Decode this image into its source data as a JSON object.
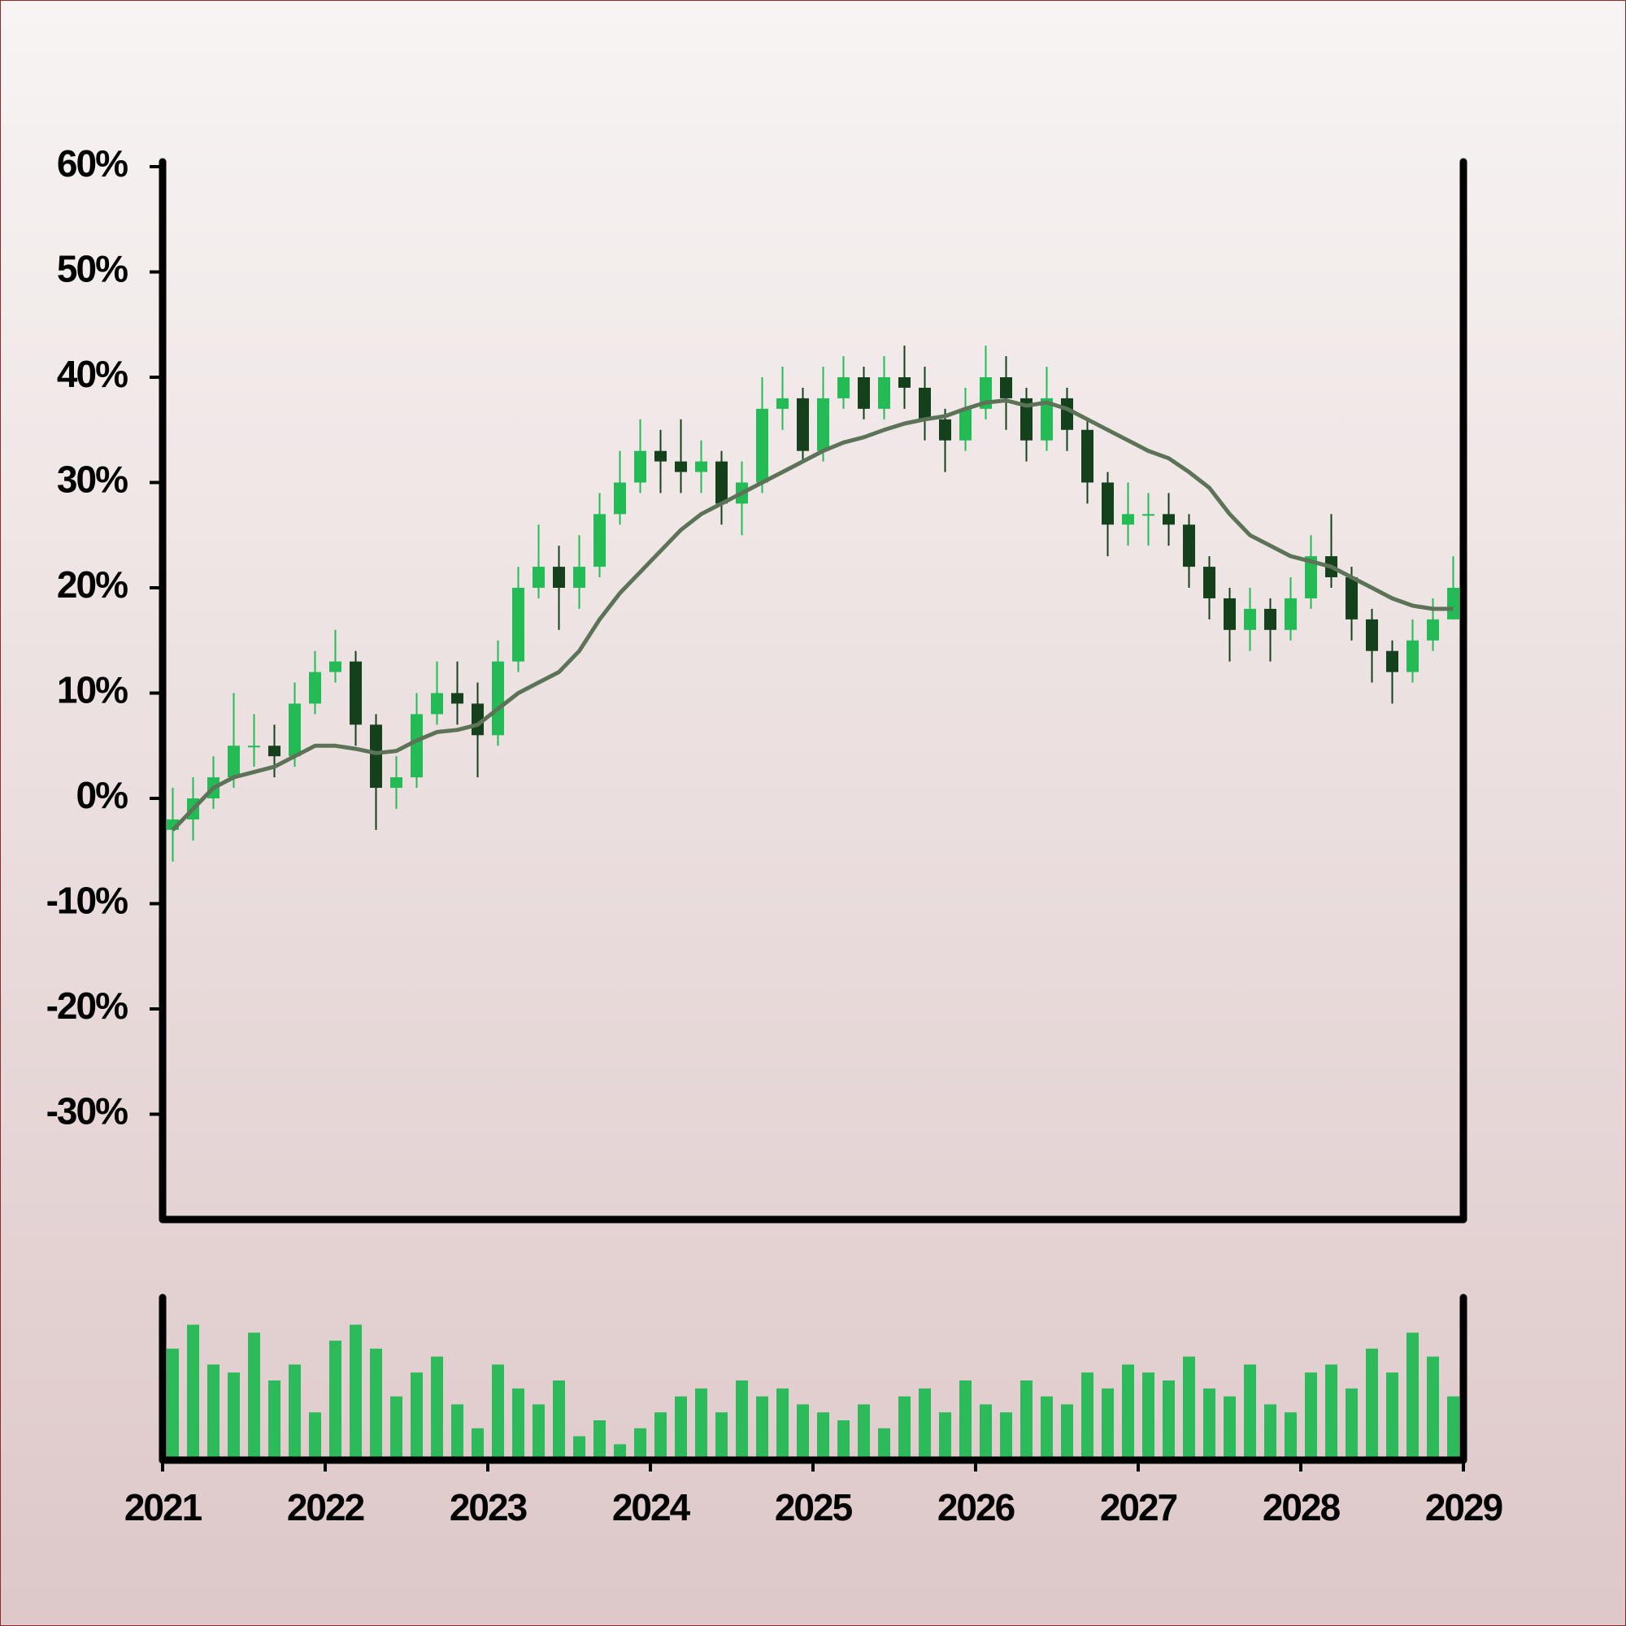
{
  "chart_data": {
    "type": "candlestick",
    "x": [
      2021.0625,
      2021.1875,
      2021.3125,
      2021.4375,
      2021.5625,
      2021.6875,
      2021.8125,
      2021.9375,
      2022.0625,
      2022.1875,
      2022.3125,
      2022.4375,
      2022.5625,
      2022.6875,
      2022.8125,
      2022.9375,
      2023.0625,
      2023.1875,
      2023.3125,
      2023.4375,
      2023.5625,
      2023.6875,
      2023.8125,
      2023.9375,
      2024.0625,
      2024.1875,
      2024.3125,
      2024.4375,
      2024.5625,
      2024.6875,
      2024.8125,
      2024.9375,
      2025.0625,
      2025.1875,
      2025.3125,
      2025.4375,
      2025.5625,
      2025.6875,
      2025.8125,
      2025.9375,
      2026.0625,
      2026.1875,
      2026.3125,
      2026.4375,
      2026.5625,
      2026.6875,
      2026.8125,
      2026.9375,
      2027.0625,
      2027.1875,
      2027.3125,
      2027.4375,
      2027.5625,
      2027.6875,
      2027.8125,
      2027.9375,
      2028.0625,
      2028.1875,
      2028.3125,
      2028.4375,
      2028.5625,
      2028.6875,
      2028.8125,
      2028.9375
    ],
    "open": [
      -3,
      -2,
      0,
      2,
      5,
      5,
      4,
      9,
      12,
      13,
      7,
      1,
      2,
      8,
      10,
      9,
      6,
      13,
      20,
      22,
      20,
      22,
      27,
      30,
      33,
      32,
      31,
      32,
      28,
      30,
      37,
      38,
      33,
      38,
      40,
      37,
      40,
      39,
      36,
      34,
      37,
      40,
      38,
      34,
      38,
      35,
      30,
      26,
      27,
      27,
      26,
      22,
      19,
      16,
      18,
      16,
      19,
      23,
      21,
      17,
      14,
      12,
      15,
      17
    ],
    "high": [
      1,
      2,
      4,
      10,
      8,
      7,
      11,
      14,
      16,
      14,
      8,
      4,
      10,
      13,
      13,
      11,
      15,
      22,
      26,
      24,
      25,
      29,
      33,
      36,
      35,
      36,
      34,
      33,
      32,
      40,
      41,
      39,
      41,
      42,
      41,
      42,
      43,
      41,
      37,
      39,
      43,
      42,
      39,
      41,
      39,
      36,
      31,
      30,
      29,
      29,
      27,
      23,
      20,
      20,
      19,
      21,
      25,
      27,
      22,
      18,
      15,
      17,
      19,
      23
    ],
    "low": [
      -6,
      -4,
      -1,
      1,
      3,
      2,
      3,
      8,
      11,
      5,
      -3,
      -1,
      1,
      7,
      7,
      2,
      5,
      12,
      19,
      16,
      18,
      21,
      26,
      29,
      29,
      29,
      29,
      26,
      25,
      29,
      35,
      32,
      32,
      37,
      36,
      36,
      37,
      34,
      31,
      33,
      36,
      35,
      32,
      33,
      33,
      28,
      23,
      24,
      24,
      24,
      20,
      17,
      13,
      14,
      13,
      15,
      18,
      20,
      15,
      11,
      9,
      11,
      14,
      17
    ],
    "close": [
      -2,
      0,
      2,
      5,
      5,
      4,
      9,
      12,
      13,
      7,
      1,
      2,
      8,
      10,
      9,
      6,
      13,
      20,
      22,
      20,
      22,
      27,
      30,
      33,
      32,
      31,
      32,
      28,
      30,
      37,
      38,
      33,
      38,
      40,
      37,
      40,
      39,
      36,
      34,
      37,
      40,
      38,
      34,
      38,
      35,
      30,
      26,
      27,
      27,
      26,
      22,
      19,
      16,
      18,
      16,
      19,
      23,
      21,
      17,
      14,
      12,
      15,
      17,
      20
    ],
    "up_color": "#22bb55",
    "down_color": "#14401c",
    "line": {
      "color": "#5c7358",
      "values": [
        -3,
        -1,
        1,
        2,
        2.5,
        3,
        4,
        5,
        5,
        4.7,
        4.3,
        4.5,
        5.5,
        6.3,
        6.5,
        7,
        8.5,
        10,
        11,
        12,
        14,
        17,
        19.5,
        21.5,
        23.5,
        25.5,
        27,
        28,
        29,
        30,
        31,
        32,
        33,
        33.8,
        34.3,
        35,
        35.6,
        36,
        36.3,
        37,
        37.6,
        37.8,
        37.3,
        37.6,
        37,
        36,
        35,
        34,
        33,
        32.3,
        31,
        29.5,
        27,
        25,
        24,
        23,
        22.5,
        22,
        21,
        20,
        19,
        18.3,
        18,
        18
      ]
    },
    "volume": {
      "type": "bar",
      "color": "#2dba5a",
      "ylim": [
        0,
        100
      ],
      "values": [
        70,
        85,
        60,
        55,
        80,
        50,
        60,
        30,
        75,
        85,
        70,
        40,
        55,
        65,
        35,
        20,
        60,
        45,
        35,
        50,
        15,
        25,
        10,
        20,
        30,
        40,
        45,
        30,
        50,
        40,
        45,
        35,
        30,
        25,
        35,
        20,
        40,
        45,
        30,
        50,
        35,
        30,
        50,
        40,
        35,
        55,
        45,
        60,
        55,
        50,
        65,
        45,
        40,
        60,
        35,
        30,
        55,
        60,
        45,
        70,
        55,
        80,
        65,
        40
      ]
    },
    "xlim": [
      2021,
      2029
    ],
    "xticks": [
      2021,
      2022,
      2023,
      2024,
      2025,
      2026,
      2027,
      2028,
      2029
    ],
    "ylim": [
      -40,
      60
    ],
    "yticks": [
      {
        "value": -30,
        "label": "-30%"
      },
      {
        "value": -20,
        "label": "-20%"
      },
      {
        "value": -10,
        "label": "-10%"
      },
      {
        "value": 0,
        "label": "0%"
      },
      {
        "value": 10,
        "label": "10%"
      },
      {
        "value": 20,
        "label": "20%"
      },
      {
        "value": 30,
        "label": "30%"
      },
      {
        "value": 40,
        "label": "40%"
      },
      {
        "value": 50,
        "label": "50%"
      },
      {
        "value": 60,
        "label": "60%"
      }
    ]
  }
}
